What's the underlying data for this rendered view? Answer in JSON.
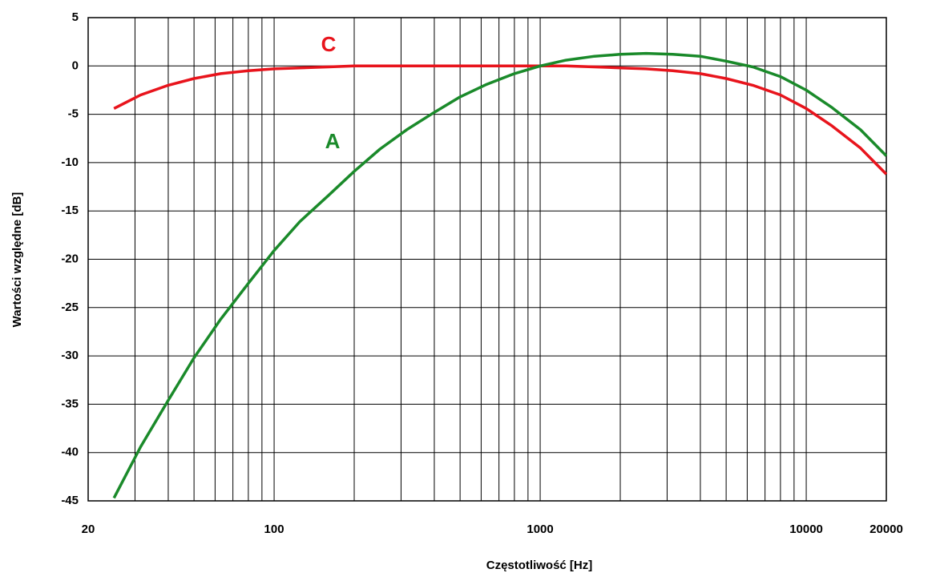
{
  "chart_data": {
    "type": "line",
    "x_label": "Częstotliwość [Hz]",
    "y_label": "Wartości względne [dB]",
    "x": [
      25,
      31.5,
      40,
      50,
      63,
      80,
      100,
      125,
      160,
      200,
      250,
      315,
      400,
      500,
      630,
      800,
      1000,
      1250,
      1600,
      2000,
      2500,
      3150,
      4000,
      5000,
      6300,
      8000,
      10000,
      12500,
      16000,
      20000
    ],
    "series": [
      {
        "name": "C",
        "color": "#e8141c",
        "values": [
          -4.4,
          -3.0,
          -2.0,
          -1.3,
          -0.8,
          -0.5,
          -0.3,
          -0.2,
          -0.1,
          0,
          0,
          0,
          0,
          0,
          0,
          0,
          0,
          0,
          -0.1,
          -0.2,
          -0.3,
          -0.5,
          -0.8,
          -1.3,
          -2.0,
          -3.0,
          -4.4,
          -6.2,
          -8.5,
          -11.2
        ]
      },
      {
        "name": "A",
        "color": "#1a8a2a",
        "values": [
          -44.7,
          -39.4,
          -34.6,
          -30.2,
          -26.2,
          -22.5,
          -19.1,
          -16.1,
          -13.4,
          -10.9,
          -8.6,
          -6.6,
          -4.8,
          -3.2,
          -1.9,
          -0.8,
          0,
          0.6,
          1.0,
          1.2,
          1.3,
          1.2,
          1.0,
          0.5,
          -0.1,
          -1.1,
          -2.5,
          -4.3,
          -6.6,
          -9.3
        ]
      }
    ],
    "xlim": [
      20,
      20000
    ],
    "x_log": true,
    "xticks": [
      20,
      100,
      1000,
      10000,
      20000
    ],
    "minor_grid": true,
    "ylim": [
      -45,
      5
    ],
    "yticks": [
      5,
      0,
      -5,
      -10,
      -15,
      -20,
      -25,
      -30,
      -35,
      -40,
      -45
    ],
    "grid": true
  }
}
